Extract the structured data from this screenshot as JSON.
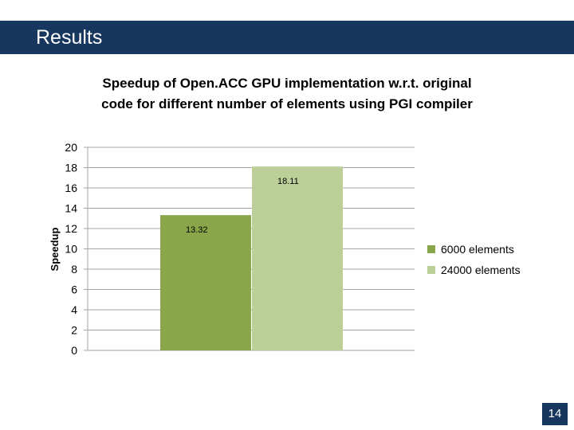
{
  "slide": {
    "header_title": "Results",
    "page_number": "14"
  },
  "colors": {
    "header": "#17375e",
    "series_1": "#8aa64b",
    "series_2": "#bccf98",
    "gridline": "#a6a6a6"
  },
  "chart_data": {
    "type": "bar",
    "title": "Speedup of Open.ACC GPU implementation w.r.t. original code for different number of elements using PGI compiler",
    "ylabel": "Speedup",
    "xlabel": "",
    "ylim": [
      0,
      20
    ],
    "yticks": [
      "0",
      "2",
      "4",
      "6",
      "8",
      "10",
      "12",
      "14",
      "16",
      "18",
      "20"
    ],
    "grid": true,
    "legend_position": "right",
    "series": [
      {
        "name": "6000 elements",
        "values": [
          13.32
        ],
        "label": "13.32"
      },
      {
        "name": "24000 elements",
        "values": [
          18.11
        ],
        "label": "18.11"
      }
    ]
  }
}
